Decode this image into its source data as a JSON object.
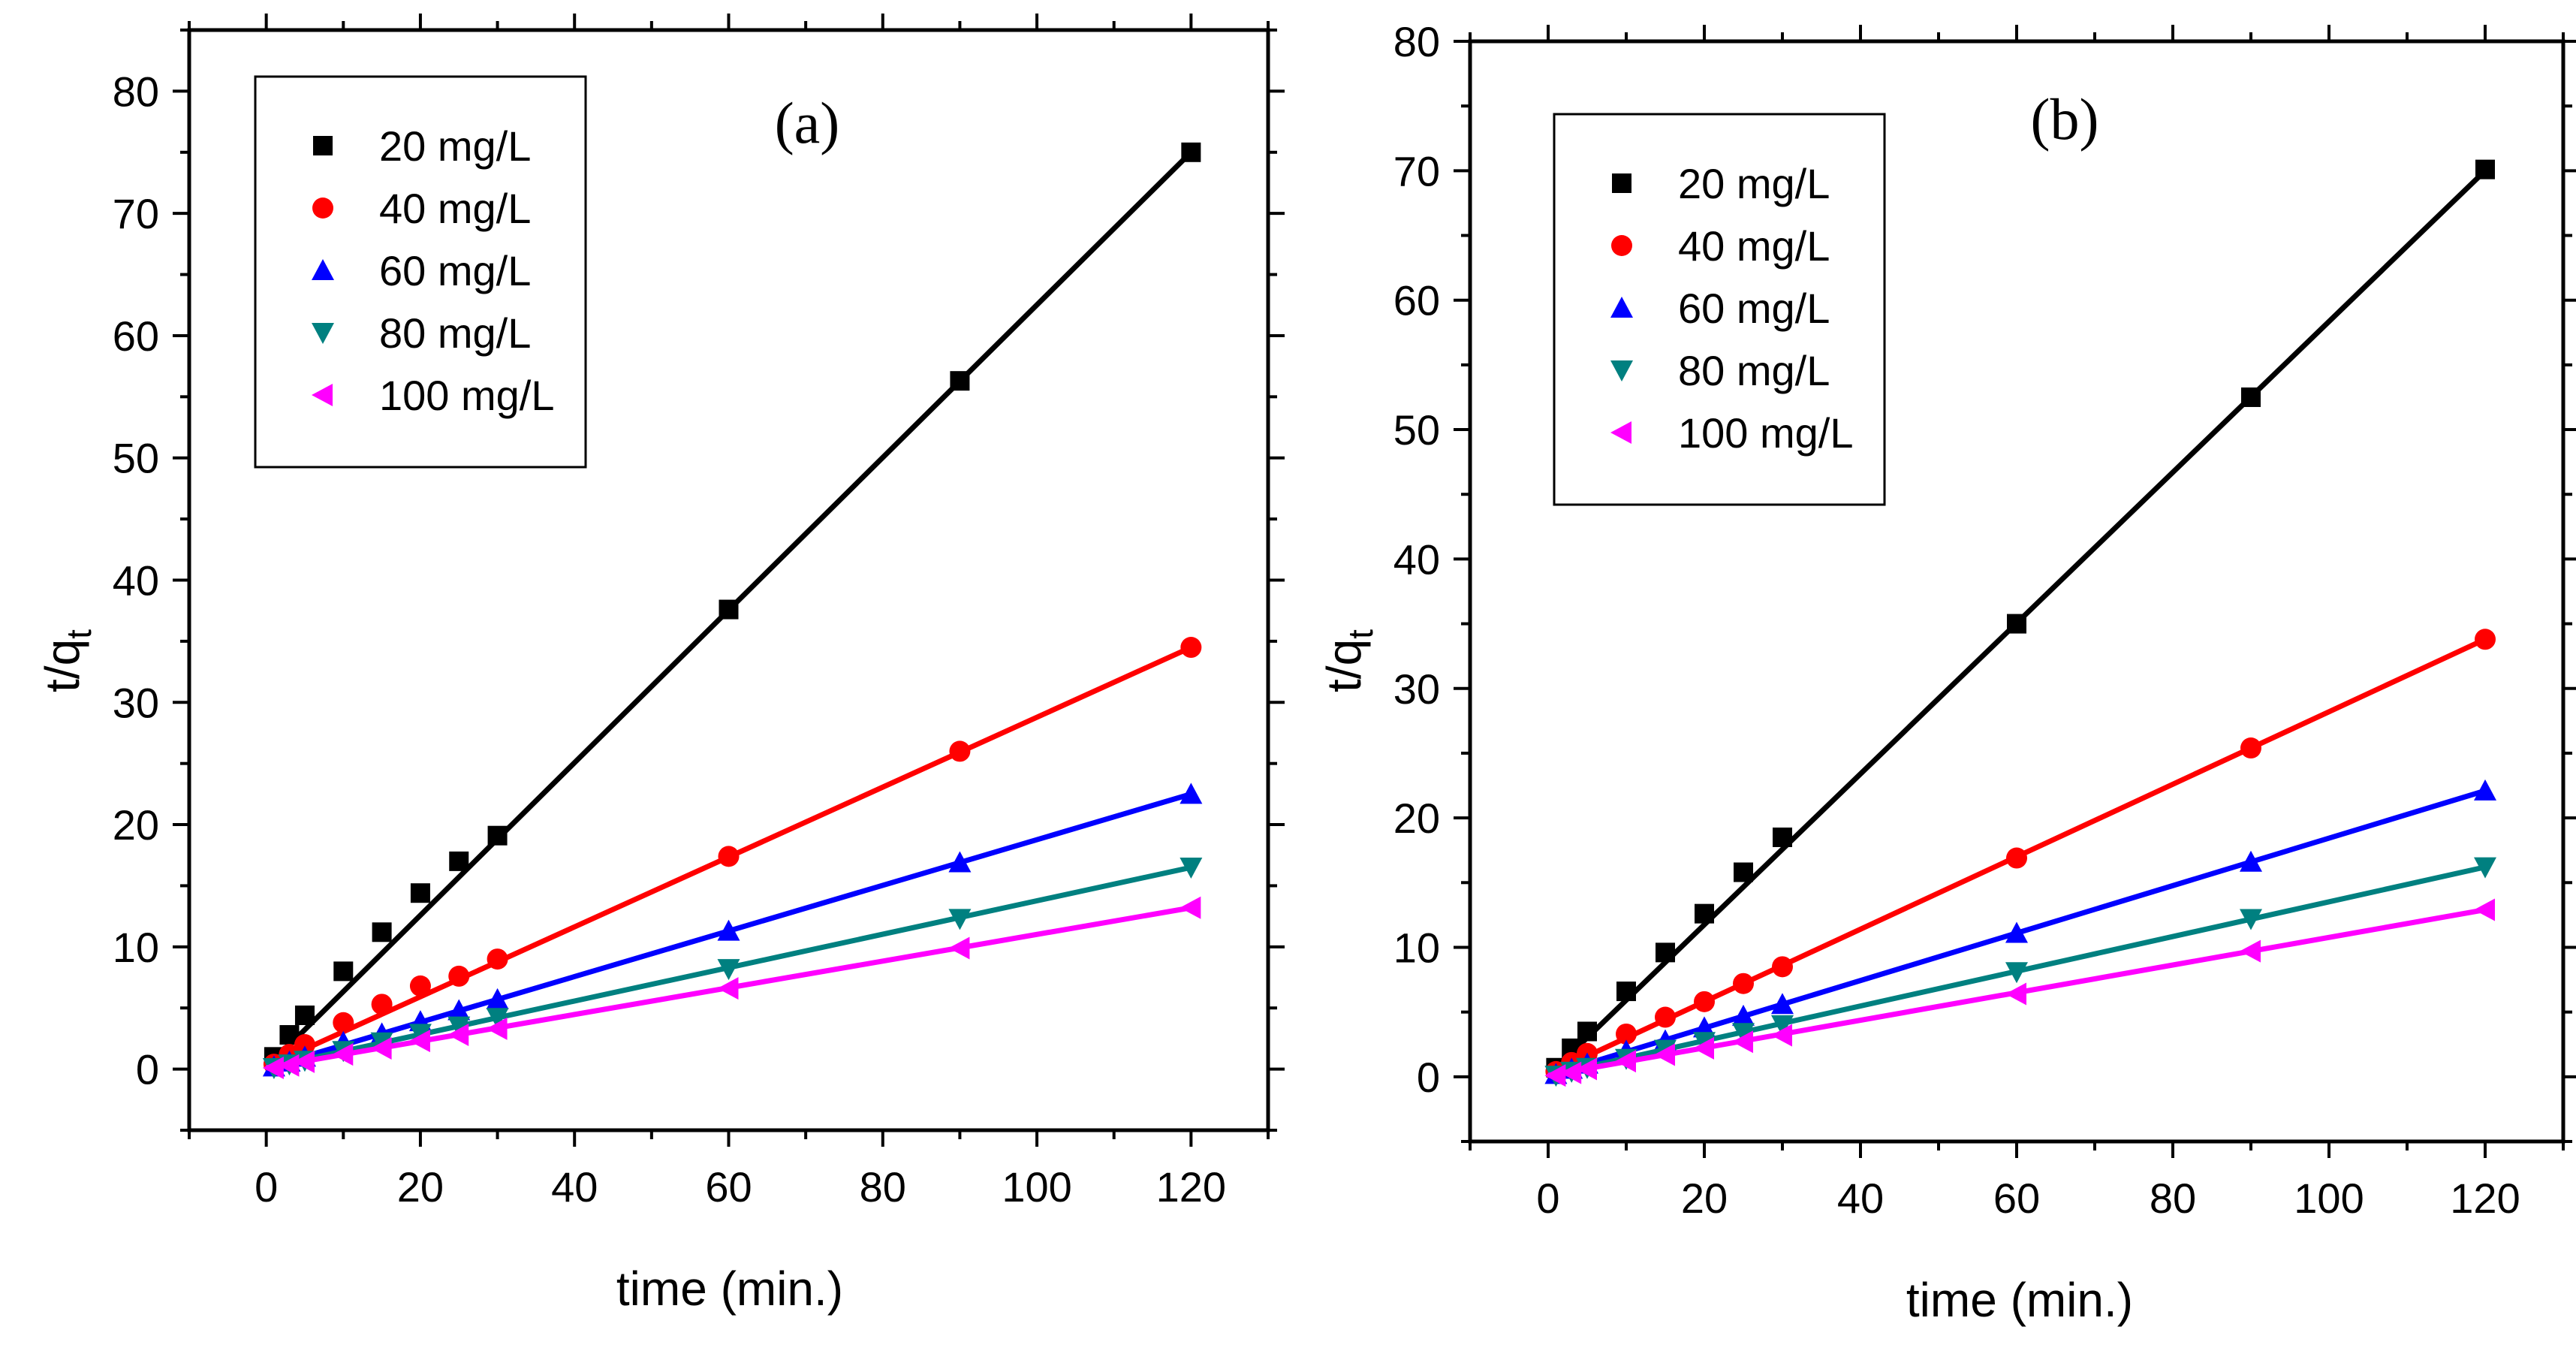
{
  "chart_data": [
    {
      "type": "scatter",
      "panel_label": "(a)",
      "xlabel": "time (min.)",
      "ylabel_main": "t/q",
      "ylabel_sub": "t",
      "xlim": [
        -10,
        130
      ],
      "ylim": [
        -5,
        85
      ],
      "xticks": [
        0,
        20,
        40,
        60,
        80,
        100,
        120
      ],
      "yticks": [
        0,
        10,
        20,
        30,
        40,
        50,
        60,
        70,
        80
      ],
      "legend_position": "top-left",
      "x": [
        1,
        3,
        5,
        10,
        15,
        20,
        25,
        30,
        60,
        90,
        120
      ],
      "series": [
        {
          "name": "20 mg/L",
          "marker": "square",
          "color": "#000000",
          "values": [
            1.0,
            2.8,
            4.4,
            8.0,
            11.2,
            14.4,
            17.0,
            19.1,
            37.6,
            56.3,
            75.0
          ],
          "fit": [
            0.1,
            75.0
          ]
        },
        {
          "name": "40 mg/L",
          "marker": "circle",
          "color": "#ff0000",
          "values": [
            0.4,
            1.2,
            2.0,
            3.8,
            5.3,
            6.8,
            7.6,
            9.0,
            17.4,
            26.0,
            34.5
          ],
          "fit": [
            0.2,
            34.5
          ]
        },
        {
          "name": "60 mg/L",
          "marker": "triangle-up",
          "color": "#0000ff",
          "values": [
            0.2,
            0.6,
            1.0,
            2.2,
            2.9,
            3.9,
            4.8,
            5.7,
            11.3,
            16.9,
            22.5
          ],
          "fit": [
            0.1,
            22.5
          ]
        },
        {
          "name": "80 mg/L",
          "marker": "triangle-down",
          "color": "#008080",
          "values": [
            0.1,
            0.4,
            0.7,
            1.5,
            2.2,
            2.9,
            3.5,
            4.2,
            8.2,
            12.3,
            16.5
          ],
          "fit": [
            0.1,
            16.5
          ]
        },
        {
          "name": "100 mg/L",
          "marker": "triangle-left",
          "color": "#ff00ff",
          "values": [
            0.1,
            0.3,
            0.6,
            1.2,
            1.7,
            2.3,
            2.8,
            3.3,
            6.6,
            9.9,
            13.2
          ],
          "fit": [
            0.1,
            13.2
          ]
        }
      ]
    },
    {
      "type": "scatter",
      "panel_label": "(b)",
      "xlabel": "time (min.)",
      "ylabel_main": "t/q",
      "ylabel_sub": "t",
      "xlim": [
        -10,
        130
      ],
      "ylim": [
        -5,
        80
      ],
      "xticks": [
        0,
        20,
        40,
        60,
        80,
        100,
        120
      ],
      "yticks": [
        0,
        10,
        20,
        30,
        40,
        50,
        60,
        70,
        80
      ],
      "legend_position": "top-left",
      "x": [
        1,
        3,
        5,
        10,
        15,
        20,
        25,
        30,
        60,
        90,
        120
      ],
      "series": [
        {
          "name": "20 mg/L",
          "marker": "square",
          "color": "#000000",
          "values": [
            0.7,
            2.2,
            3.5,
            6.6,
            9.6,
            12.6,
            15.8,
            18.5,
            35.0,
            52.5,
            70.1
          ],
          "fit": [
            0.1,
            70.0
          ]
        },
        {
          "name": "40 mg/L",
          "marker": "circle",
          "color": "#ff0000",
          "values": [
            0.4,
            1.1,
            1.8,
            3.3,
            4.6,
            5.8,
            7.2,
            8.5,
            16.9,
            25.4,
            33.8
          ],
          "fit": [
            0.2,
            33.8
          ]
        },
        {
          "name": "60 mg/L",
          "marker": "triangle-up",
          "color": "#0000ff",
          "values": [
            0.2,
            0.6,
            1.0,
            2.0,
            2.8,
            3.8,
            4.7,
            5.6,
            11.1,
            16.6,
            22.1
          ],
          "fit": [
            0.1,
            22.1
          ]
        },
        {
          "name": "80 mg/L",
          "marker": "triangle-down",
          "color": "#008080",
          "values": [
            0.1,
            0.4,
            0.7,
            1.4,
            2.1,
            2.7,
            3.4,
            4.0,
            8.1,
            12.2,
            16.2
          ],
          "fit": [
            0.1,
            16.2
          ]
        },
        {
          "name": "100 mg/L",
          "marker": "triangle-left",
          "color": "#ff00ff",
          "values": [
            0.1,
            0.3,
            0.6,
            1.2,
            1.7,
            2.2,
            2.7,
            3.2,
            6.4,
            9.7,
            12.9
          ],
          "fit": [
            0.1,
            12.9
          ]
        }
      ]
    }
  ]
}
